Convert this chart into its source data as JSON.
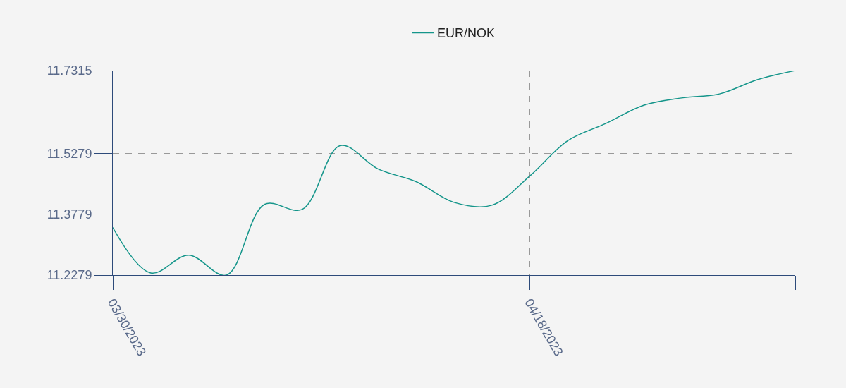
{
  "chart_data": {
    "type": "line",
    "categories": [
      "03/30/2023",
      null,
      null,
      null,
      null,
      null,
      null,
      null,
      null,
      null,
      null,
      "04/18/2023",
      null,
      null,
      null,
      null,
      null,
      null,
      null
    ],
    "series": [
      {
        "name": "EUR/NOK",
        "color": "#14958a",
        "values": [
          11.345,
          11.233,
          11.277,
          11.228,
          11.402,
          11.39,
          11.547,
          11.489,
          11.458,
          11.407,
          11.4,
          11.472,
          11.559,
          11.601,
          11.646,
          11.664,
          11.674,
          11.709,
          11.7315
        ]
      }
    ],
    "ylim": [
      11.2279,
      11.7315
    ],
    "yticks": [
      11.2279,
      11.3779,
      11.5279,
      11.7315
    ],
    "grid": true,
    "legend": "top",
    "line_style": "solid"
  }
}
